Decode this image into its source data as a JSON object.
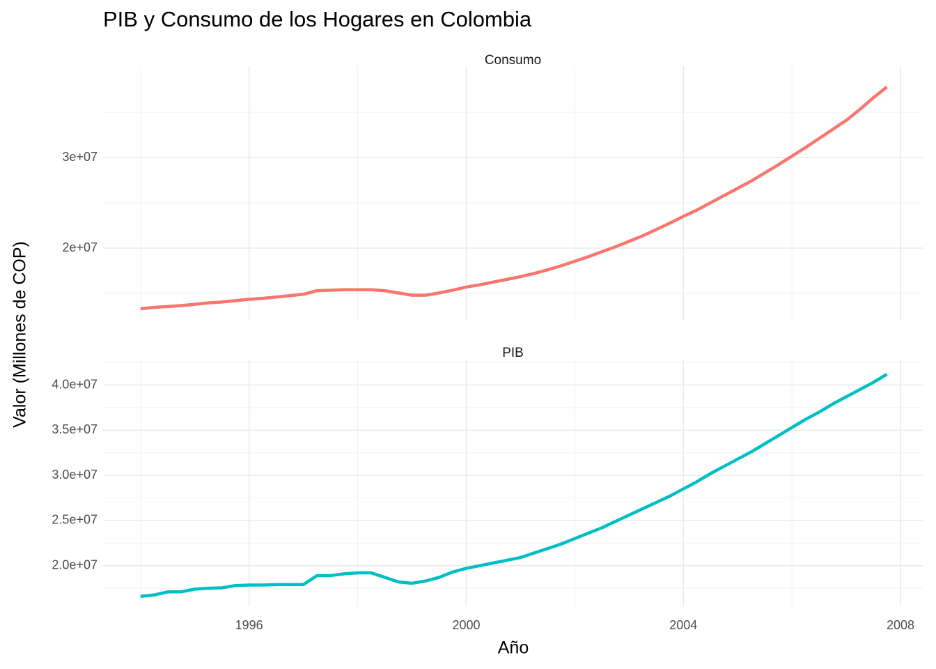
{
  "chart_data": {
    "type": "line",
    "title": "PIB y Consumo de los Hogares en Colombia",
    "x_label": "Año",
    "y_label": "Valor (Millones de COP)",
    "x": [
      1994,
      1994.25,
      1994.5,
      1994.75,
      1995,
      1995.25,
      1995.5,
      1995.75,
      1996,
      1996.25,
      1996.5,
      1996.75,
      1997,
      1997.25,
      1997.5,
      1997.75,
      1998,
      1998.25,
      1998.5,
      1998.75,
      1999,
      1999.25,
      1999.5,
      1999.75,
      2000,
      2000.25,
      2000.5,
      2000.75,
      2001,
      2001.25,
      2001.5,
      2001.75,
      2002,
      2002.25,
      2002.5,
      2002.75,
      2003,
      2003.25,
      2003.5,
      2003.75,
      2004,
      2004.25,
      2004.5,
      2004.75,
      2005,
      2005.25,
      2005.5,
      2005.75,
      2006,
      2006.25,
      2006.5,
      2006.75,
      2007,
      2007.25,
      2007.5,
      2007.75
    ],
    "xlim": [
      1993.31,
      2008.41
    ],
    "xticks": [
      1996,
      2000,
      2004,
      2008
    ],
    "grid": true,
    "facets": [
      {
        "title": "Consumo",
        "color": "#F8766D",
        "values": [
          13310000,
          13450000,
          13550000,
          13650000,
          13800000,
          13950000,
          14050000,
          14200000,
          14350000,
          14450000,
          14600000,
          14750000,
          14900000,
          15300000,
          15350000,
          15400000,
          15400000,
          15400000,
          15300000,
          15050000,
          14800000,
          14800000,
          15050000,
          15350000,
          15700000,
          15950000,
          16250000,
          16550000,
          16850000,
          17200000,
          17600000,
          18050000,
          18550000,
          19050000,
          19600000,
          20150000,
          20750000,
          21350000,
          22050000,
          22750000,
          23500000,
          24200000,
          25000000,
          25800000,
          26600000,
          27400000,
          28300000,
          29200000,
          30150000,
          31100000,
          32100000,
          33100000,
          34100000,
          35300000,
          36600000,
          37800000
        ],
        "ylim": [
          12000000,
          40080000
        ],
        "yticks": [
          {
            "value": 20000000,
            "label": "2e+07"
          },
          {
            "value": 30000000,
            "label": "3e+07"
          }
        ]
      },
      {
        "title": "PIB",
        "color": "#00BFC4",
        "values": [
          16600000,
          16750000,
          17100000,
          17100000,
          17400000,
          17500000,
          17550000,
          17800000,
          17850000,
          17850000,
          17900000,
          17900000,
          17900000,
          18900000,
          18900000,
          19100000,
          19200000,
          19200000,
          18700000,
          18200000,
          18050000,
          18300000,
          18700000,
          19300000,
          19700000,
          20000000,
          20300000,
          20600000,
          20900000,
          21400000,
          21900000,
          22400000,
          23000000,
          23600000,
          24200000,
          24900000,
          25600000,
          26300000,
          27000000,
          27700000,
          28500000,
          29300000,
          30200000,
          31000000,
          31800000,
          32600000,
          33500000,
          34400000,
          35300000,
          36200000,
          37000000,
          37900000,
          38700000,
          39500000,
          40300000,
          41200000
        ],
        "ylim": [
          15500000,
          42900000
        ],
        "yticks": [
          {
            "value": 20000000,
            "label": "2.0e+07"
          },
          {
            "value": 25000000,
            "label": "2.5e+07"
          },
          {
            "value": 30000000,
            "label": "3.0e+07"
          },
          {
            "value": 35000000,
            "label": "3.5e+07"
          },
          {
            "value": 40000000,
            "label": "4.0e+07"
          }
        ]
      }
    ]
  }
}
